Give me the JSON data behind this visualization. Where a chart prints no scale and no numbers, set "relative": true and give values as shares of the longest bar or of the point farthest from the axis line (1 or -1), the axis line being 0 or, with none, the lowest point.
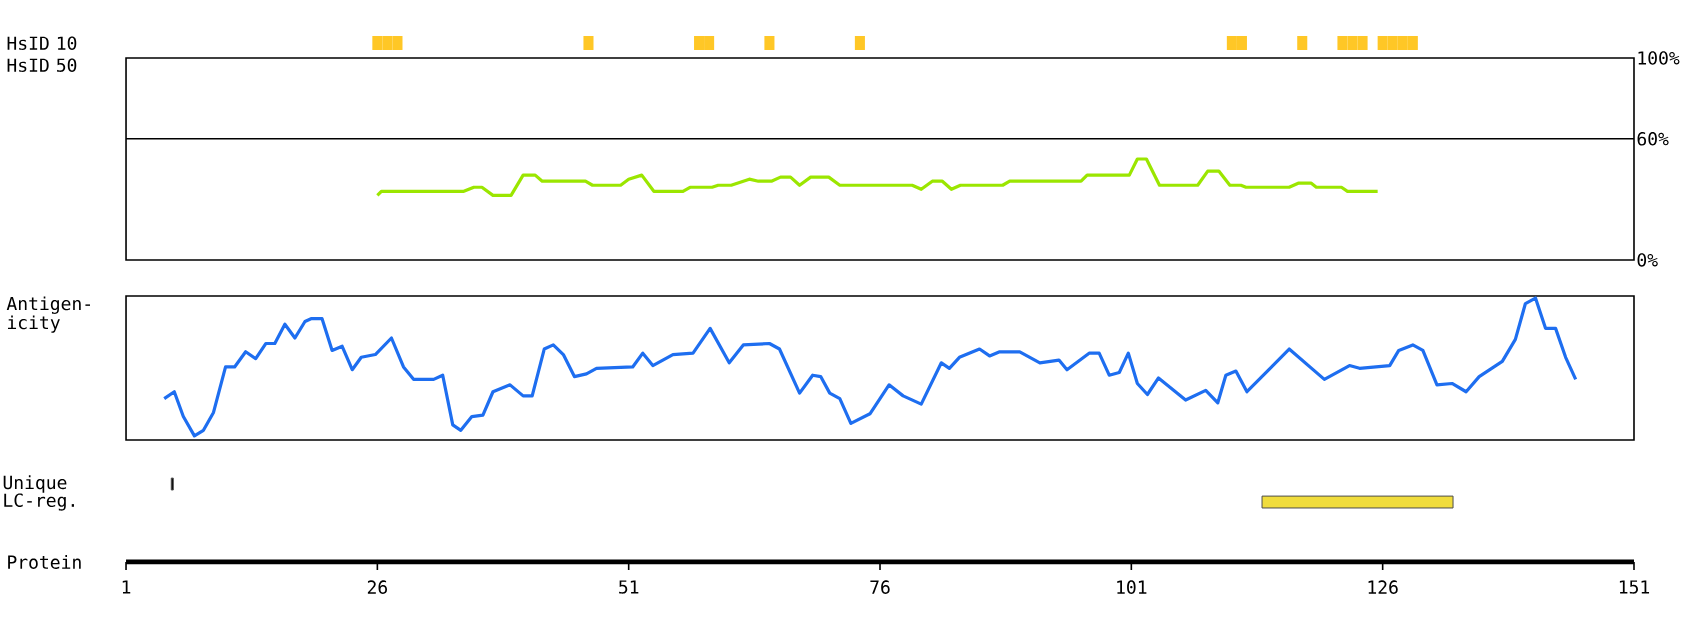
{
  "chart_data": [
    {
      "type": "bar",
      "ylabel": "HsID 10",
      "relative": true,
      "color": "#ffc726",
      "xlim": [
        1,
        151
      ],
      "tick_labels": false,
      "x": [
        26,
        27,
        28,
        47,
        58,
        59,
        65,
        74,
        111,
        112,
        118,
        122,
        123,
        124,
        126,
        127,
        128,
        129
      ],
      "values": [
        1,
        1,
        1,
        1,
        1,
        1,
        1,
        1,
        1,
        1,
        1,
        1,
        1,
        1,
        1,
        1,
        1,
        1
      ]
    },
    {
      "type": "line",
      "ylabel": "HsID 50",
      "color": "#9be600",
      "xlim": [
        1,
        151
      ],
      "ylim": [
        0,
        100
      ],
      "tick_labels": "y",
      "yticks": [
        {
          "value": 0,
          "label": "0%"
        },
        {
          "value": 60,
          "label": "60%"
        },
        {
          "value": 100,
          "label": "100%"
        }
      ],
      "ref_lines": [
        {
          "axis": "y",
          "value": 60,
          "color": "#000000"
        }
      ],
      "x": [
        26,
        26.4,
        34.6,
        35.6,
        36.4,
        37.5,
        39.3,
        40.5,
        41.7,
        42.4,
        46.7,
        47.4,
        50.2,
        51,
        52.3,
        53.5,
        56.4,
        57.1,
        59.3,
        59.9,
        61.2,
        63,
        63.9,
        65.2,
        66.1,
        67.1,
        68,
        69.1,
        70.9,
        72,
        79.2,
        80.1,
        81.2,
        82.2,
        83.1,
        84,
        88.2,
        88.9,
        96,
        96.6,
        100.8,
        101.6,
        102.5,
        103.8,
        107.6,
        108.6,
        109.7,
        110.8,
        111.9,
        112.4,
        116.7,
        117.6,
        118.9,
        119.4,
        121.9,
        122.5,
        125.5
      ],
      "values": [
        32,
        34,
        34,
        36,
        36,
        32,
        32,
        42,
        42,
        39,
        39,
        37,
        37,
        40,
        42,
        34,
        34,
        36,
        36,
        37,
        37,
        40,
        39,
        39,
        41,
        41,
        37,
        41,
        41,
        37,
        37,
        35,
        39,
        39,
        35,
        37,
        37,
        39,
        39,
        42,
        42,
        50,
        50,
        37,
        37,
        44,
        44,
        37,
        37,
        36,
        36,
        38,
        38,
        36,
        36,
        34,
        34
      ]
    },
    {
      "type": "line",
      "ylabel": "Antigen- icity",
      "relative": true,
      "color": "#1e6ef0",
      "xlim": [
        1,
        151
      ],
      "tick_labels": false,
      "x": [
        4.8,
        5.8,
        6.7,
        7.8,
        8.7,
        9.7,
        10.9,
        11.8,
        12.9,
        13.9,
        14.9,
        15.8,
        16.8,
        17.8,
        18.8,
        19.4,
        20.5,
        21.5,
        22.5,
        23.5,
        24.4,
        25.8,
        27.4,
        28.6,
        29.6,
        31.6,
        32.5,
        33.5,
        34.3,
        35.4,
        36.5,
        37.5,
        39.2,
        40.5,
        41.4,
        42.6,
        43.5,
        44.5,
        45.6,
        46.8,
        47.8,
        51.4,
        52.4,
        53.4,
        55.4,
        57.4,
        59.1,
        61,
        62.4,
        65,
        66,
        68,
        69.3,
        70.1,
        71,
        72,
        73.1,
        75,
        76.9,
        78.3,
        80.1,
        82.1,
        82.9,
        83.9,
        85.9,
        86.9,
        87.9,
        89.9,
        91.9,
        93.8,
        94.6,
        96.8,
        97.8,
        98.8,
        99.8,
        100.7,
        101.6,
        102.6,
        103.7,
        106.4,
        108.4,
        109.6,
        110.4,
        111.4,
        112.5,
        116.7,
        120.2,
        122.7,
        123.7,
        126.7,
        127.6,
        129,
        130,
        131.4,
        132.9,
        134.3,
        135.6,
        137.9,
        139.2,
        140.2,
        141.2,
        142.2,
        143.2,
        144.2,
        145.2
      ],
      "values": [
        0.27,
        0.32,
        0.14,
        0,
        0.04,
        0.17,
        0.5,
        0.5,
        0.61,
        0.56,
        0.67,
        0.67,
        0.81,
        0.71,
        0.83,
        0.85,
        0.85,
        0.62,
        0.65,
        0.48,
        0.57,
        0.59,
        0.71,
        0.5,
        0.41,
        0.41,
        0.44,
        0.08,
        0.04,
        0.14,
        0.15,
        0.32,
        0.37,
        0.29,
        0.29,
        0.63,
        0.66,
        0.59,
        0.43,
        0.45,
        0.49,
        0.5,
        0.6,
        0.51,
        0.59,
        0.6,
        0.78,
        0.53,
        0.66,
        0.67,
        0.63,
        0.31,
        0.44,
        0.43,
        0.31,
        0.27,
        0.09,
        0.16,
        0.37,
        0.29,
        0.23,
        0.53,
        0.49,
        0.57,
        0.63,
        0.58,
        0.61,
        0.61,
        0.53,
        0.55,
        0.48,
        0.6,
        0.6,
        0.44,
        0.46,
        0.6,
        0.38,
        0.3,
        0.42,
        0.26,
        0.33,
        0.24,
        0.44,
        0.47,
        0.32,
        0.63,
        0.41,
        0.51,
        0.49,
        0.51,
        0.62,
        0.66,
        0.62,
        0.37,
        0.38,
        0.32,
        0.43,
        0.54,
        0.7,
        0.96,
        1,
        0.78,
        0.78,
        0.57,
        0.41
      ]
    },
    {
      "type": "bar",
      "orientation": "horizontal",
      "xlabel": "Protein",
      "categories": [
        "Unique",
        "LC-reg."
      ],
      "base": [
        5.5,
        114
      ],
      "values": [
        0.2,
        19
      ],
      "colors": [
        "#000000",
        "#f0dc3c"
      ],
      "xlim": [
        1,
        151
      ],
      "xticks": [
        1,
        26,
        51,
        76,
        101,
        126,
        151
      ]
    }
  ]
}
